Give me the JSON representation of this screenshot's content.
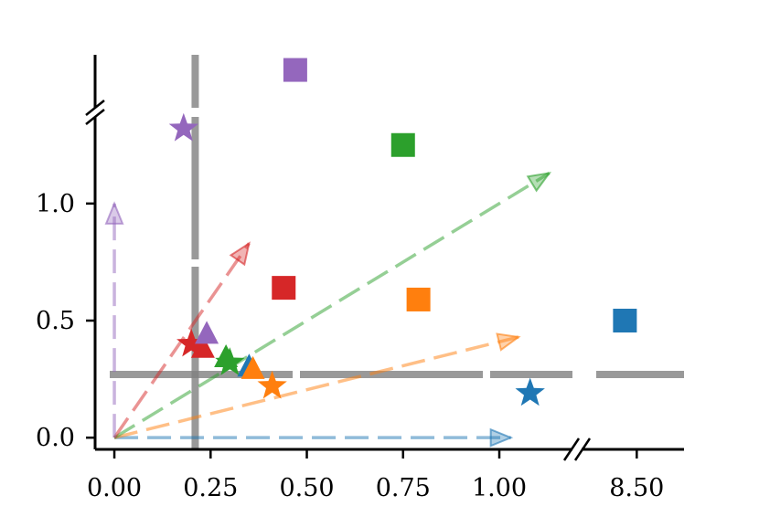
{
  "chart_data": {
    "type": "scatter",
    "title": "",
    "xlabel": "",
    "ylabel": "",
    "x_axis": {
      "broken": true,
      "segments": [
        {
          "range": [
            -0.05,
            1.19
          ],
          "ticks": [
            0.0,
            0.25,
            0.5,
            0.75,
            1.0
          ],
          "tick_labels": [
            "0.00",
            "0.25",
            "0.50",
            "0.75",
            "1.00"
          ]
        },
        {
          "range": [
            8.36,
            8.62
          ],
          "ticks": [
            8.5
          ],
          "tick_labels": [
            "8.50"
          ]
        }
      ]
    },
    "y_axis": {
      "broken": true,
      "segments": [
        {
          "range": [
            -0.05,
            1.37
          ],
          "ticks": [
            0.0,
            0.5,
            1.0
          ],
          "tick_labels": [
            "0.0",
            "0.5",
            "1.0"
          ]
        },
        {
          "range": [
            1.47,
            1.75
          ],
          "ticks": [],
          "tick_labels": []
        }
      ]
    },
    "grid": false,
    "legend": "none",
    "colors": {
      "blue": "#1f77b4",
      "orange": "#ff7f0e",
      "green": "#2ca02c",
      "red": "#d62728",
      "purple": "#9467bd",
      "gray": "#808080"
    },
    "reference_lines": [
      {
        "orientation": "vertical",
        "x": 0.21,
        "color": "gray"
      },
      {
        "orientation": "horizontal",
        "y": 0.27,
        "color": "gray"
      }
    ],
    "series": [
      {
        "color": "blue",
        "square": {
          "x": 8.47,
          "y": 0.5
        },
        "star": {
          "x": 1.08,
          "y": 0.19
        },
        "triangle": {
          "x": 0.35,
          "y": 0.3
        },
        "arrow": {
          "from": [
            0,
            0
          ],
          "to": [
            1.03,
            0.0
          ]
        }
      },
      {
        "color": "orange",
        "square": {
          "x": 0.79,
          "y": 0.59
        },
        "star": {
          "x": 0.41,
          "y": 0.22
        },
        "triangle": {
          "x": 0.36,
          "y": 0.29
        },
        "arrow": {
          "from": [
            0,
            0
          ],
          "to": [
            1.05,
            0.43
          ]
        }
      },
      {
        "color": "green",
        "square": {
          "x": 0.75,
          "y": 1.25
        },
        "star": {
          "x": 0.3,
          "y": 0.32
        },
        "triangle": {
          "x": 0.29,
          "y": 0.34
        },
        "arrow": {
          "from": [
            0,
            0
          ],
          "to": [
            1.13,
            1.13
          ]
        }
      },
      {
        "color": "red",
        "square": {
          "x": 0.44,
          "y": 0.64
        },
        "star": {
          "x": 0.2,
          "y": 0.4
        },
        "triangle": {
          "x": 0.23,
          "y": 0.38
        },
        "arrow": {
          "from": [
            0,
            0
          ],
          "to": [
            0.35,
            0.83
          ]
        }
      },
      {
        "color": "purple",
        "square": {
          "x": 0.47,
          "y": 1.67
        },
        "star": {
          "x": 0.18,
          "y": 1.32
        },
        "triangle": {
          "x": 0.24,
          "y": 0.44
        },
        "arrow": {
          "from": [
            0,
            0
          ],
          "to": [
            0.0,
            1.0
          ]
        }
      }
    ]
  }
}
